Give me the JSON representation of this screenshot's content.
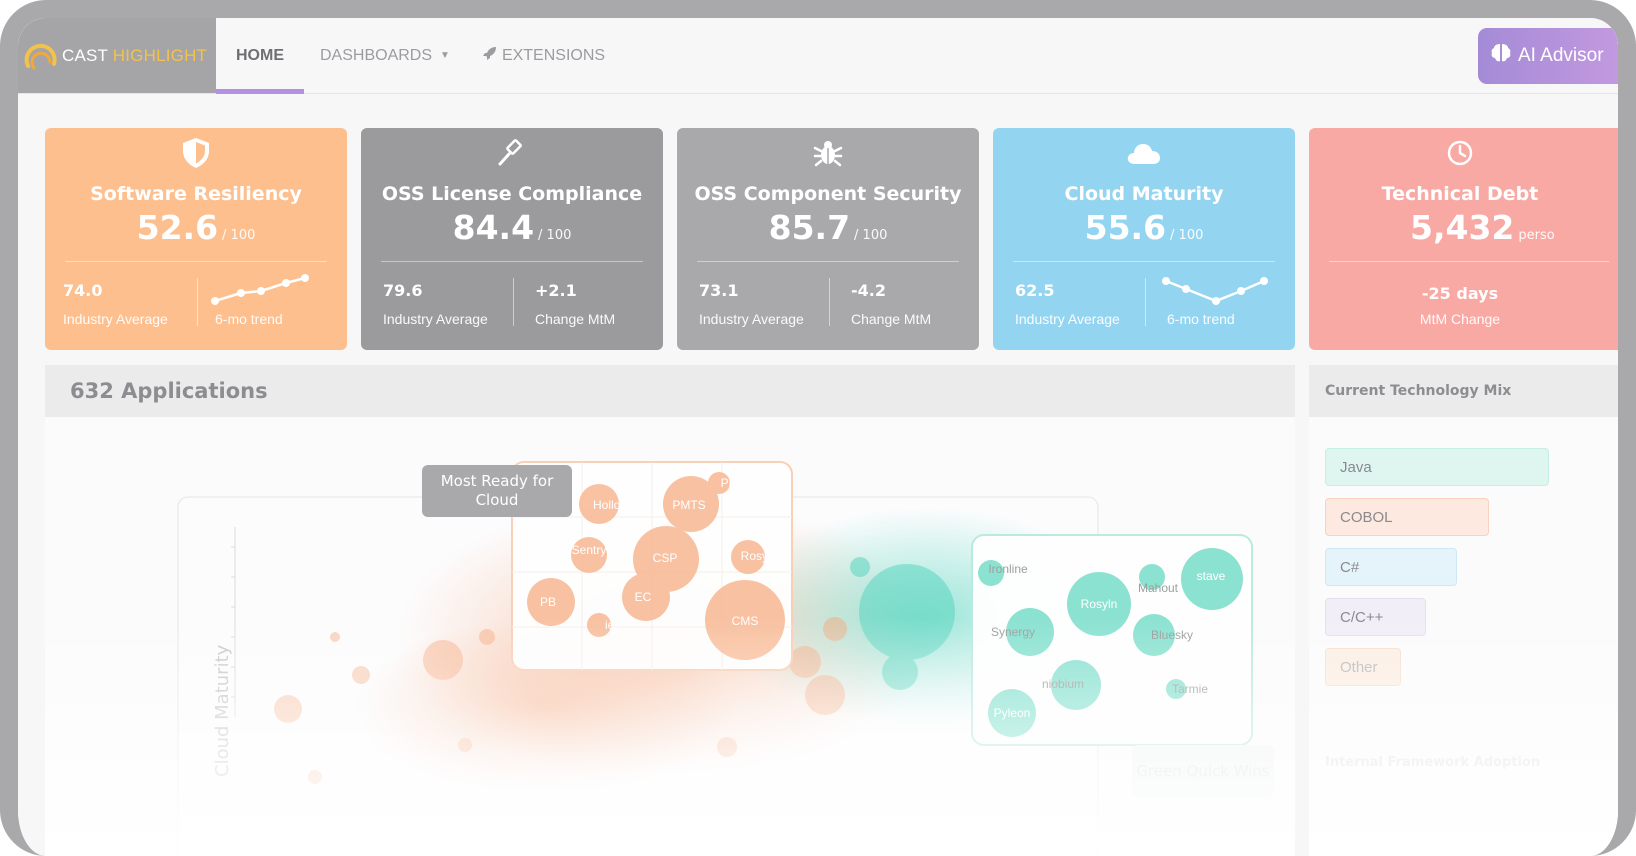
{
  "header": {
    "brand_left": "CAST",
    "brand_right": "HIGHLIGHT",
    "nav": [
      {
        "label": "HOME"
      },
      {
        "label": "DASHBOARDS"
      },
      {
        "label": "EXTENSIONS"
      }
    ],
    "advisor_label": "AI Advisor"
  },
  "cards": [
    {
      "title": "Software Resiliency",
      "score": "52.6",
      "of": "/ 100",
      "left_value": "74.0",
      "left_label": "Industry Average",
      "right_value": "",
      "right_label": "6-mo trend",
      "color": "#fdbf8e"
    },
    {
      "title": "OSS License Compliance",
      "score": "84.4",
      "of": "/ 100",
      "left_value": "79.6",
      "left_label": "Industry Average",
      "right_value": "+2.1",
      "right_label": "Change MtM",
      "color": "#9b9b9e"
    },
    {
      "title": "OSS Component Security",
      "score": "85.7",
      "of": "/ 100",
      "left_value": "73.1",
      "left_label": "Industry Average",
      "right_value": "-4.2",
      "right_label": "Change MtM",
      "color": "#a9a9ac"
    },
    {
      "title": "Cloud Maturity",
      "score": "55.6",
      "of": "/ 100",
      "left_value": "62.5",
      "left_label": "Industry Average",
      "right_value": "",
      "right_label": "6-mo trend",
      "color": "#93d5f1"
    },
    {
      "title": "Technical Debt",
      "score": "5,432",
      "of": "perso",
      "left_value": "-25 days",
      "left_label": "MtM Change",
      "color": "#f8a9a4"
    }
  ],
  "applications": {
    "title": "632 Applications",
    "y_axis_label": "Cloud Maturity",
    "callout_cloud": "Most Ready for Cloud",
    "callout_green": "Green Quick Wins",
    "orange_bubbles": [
      {
        "label": "Hollow"
      },
      {
        "label": "PMTS"
      },
      {
        "label": "PHP"
      },
      {
        "label": "Sentry"
      },
      {
        "label": "CSP"
      },
      {
        "label": "Rosyln"
      },
      {
        "label": "PB"
      },
      {
        "label": "EC"
      },
      {
        "label": "CMS"
      },
      {
        "label": "iep"
      }
    ],
    "teal_bubbles": [
      {
        "label": "Ironline"
      },
      {
        "label": "Mahout"
      },
      {
        "label": "stave"
      },
      {
        "label": "Rosyln"
      },
      {
        "label": "Synergy"
      },
      {
        "label": "Bluesky"
      },
      {
        "label": "niobium"
      },
      {
        "label": "Tarmie"
      },
      {
        "label": "Pyleon"
      }
    ]
  },
  "tech_mix": {
    "title": "Current Technology Mix",
    "items": [
      {
        "label": "Java",
        "share": 1.0,
        "color": "#dff6f0"
      },
      {
        "label": "COBOL",
        "share": 0.73,
        "color": "#fde9df"
      },
      {
        "label": "C#",
        "share": 0.59,
        "color": "#e5f4fb"
      },
      {
        "label": "C/C++",
        "share": 0.45,
        "color": "#f1eef8"
      },
      {
        "label": "Other",
        "share": 0.34,
        "color": "#fbeee3"
      }
    ],
    "footer_title": "Internal Framework Adoption"
  }
}
